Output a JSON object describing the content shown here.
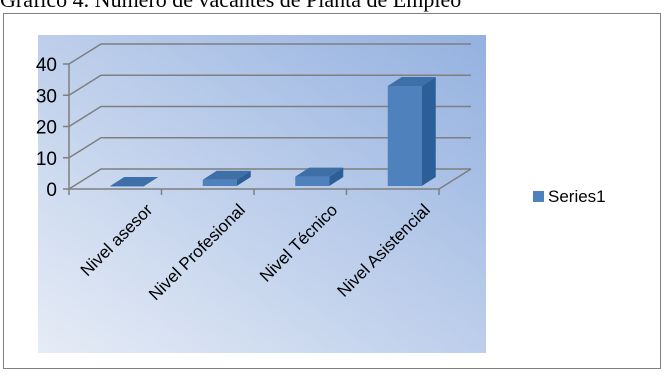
{
  "caption": "Gráfico 4. Número de vacantes de Planta de Empleo",
  "chart_data": {
    "type": "bar",
    "categories": [
      "Nivel asesor",
      "Nivel Profesional",
      "Nivel Técnico",
      "Nivel Asistencial"
    ],
    "series": [
      {
        "name": "Series1",
        "values": [
          0,
          2,
          3,
          32
        ]
      }
    ],
    "ylim": [
      0,
      40
    ],
    "yticks": [
      0,
      10,
      20,
      30,
      40
    ],
    "grid": true,
    "legend": "right",
    "three_d": true,
    "colors": {
      "bar_front": "#4f81bd",
      "bar_top": "#3e6fa7",
      "bar_side": "#2c5f98",
      "plot_bg_light": "#e6ecf6",
      "plot_bg_dark": "#94b1e0",
      "grid": "#7f7f7f",
      "legend_swatch": "#4f81bd"
    }
  }
}
